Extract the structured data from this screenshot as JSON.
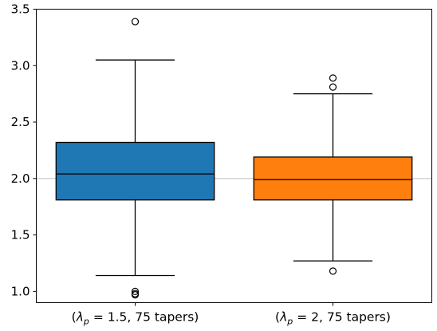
{
  "chart_data": {
    "type": "box",
    "title": "",
    "xlabel": "",
    "ylabel": "",
    "ylim": [
      0.9,
      3.5
    ],
    "yticks": [
      "1.0",
      "1.5",
      "2.0",
      "2.5",
      "3.0",
      "3.5"
    ],
    "reference_line": {
      "y": 2.0,
      "color": "#c8c8c8"
    },
    "grid": false,
    "categories": [
      {
        "prefix": "(",
        "symbol": "λ",
        "subscript": "p",
        "suffix": " = 1.5, 75 tapers)"
      },
      {
        "prefix": "(",
        "symbol": "λ",
        "subscript": "p",
        "suffix": " = 2, 75 tapers)"
      }
    ],
    "series": [
      {
        "color": "#1f77b4",
        "whisker_low": 1.14,
        "q1": 1.81,
        "median": 2.04,
        "q3": 2.32,
        "whisker_high": 3.05,
        "outliers": [
          3.39,
          1.0,
          0.98,
          0.97
        ]
      },
      {
        "color": "#ff7f0e",
        "whisker_low": 1.27,
        "q1": 1.81,
        "median": 1.99,
        "q3": 2.19,
        "whisker_high": 2.75,
        "outliers": [
          2.89,
          2.81,
          1.18
        ]
      }
    ]
  }
}
